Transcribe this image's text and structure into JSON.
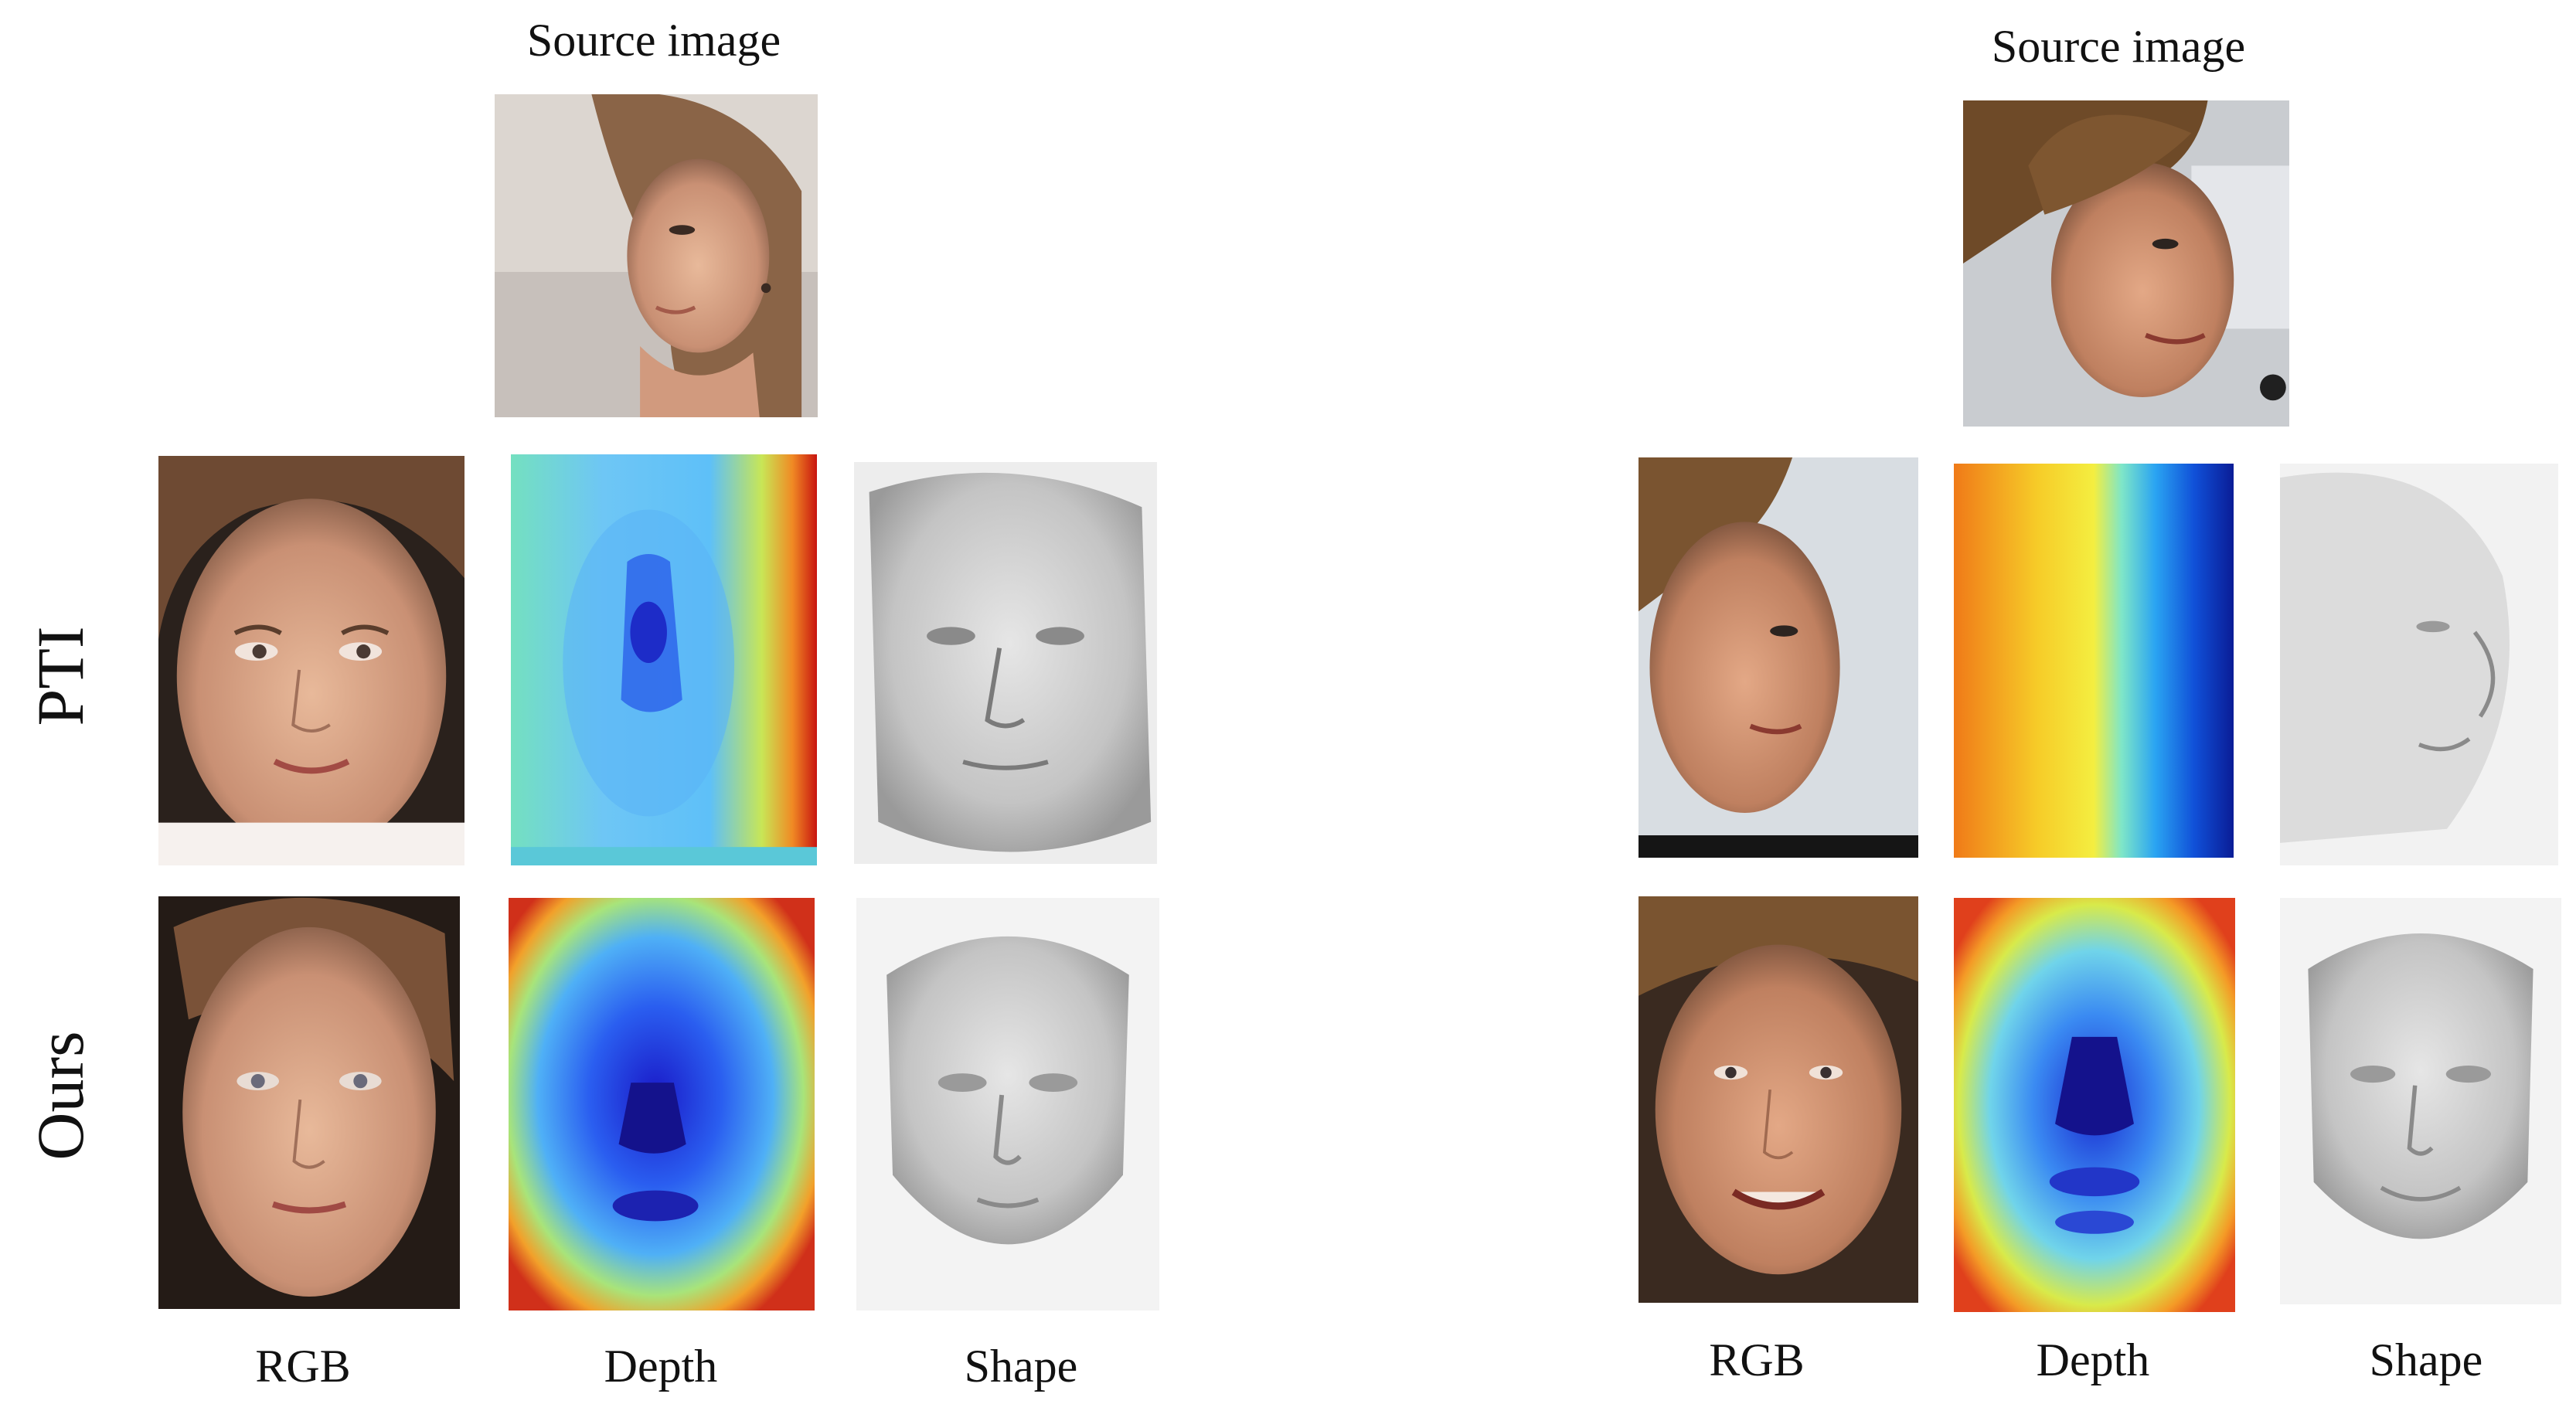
{
  "figure": {
    "source_label": "Source image",
    "row_labels": {
      "pti": "PTI",
      "ours": "Ours"
    },
    "column_labels": [
      "RGB",
      "Depth",
      "Shape"
    ]
  },
  "panels": [
    {
      "name": "left",
      "source_label": "Source image",
      "columns": [
        "RGB",
        "Depth",
        "Shape"
      ],
      "rows": [
        "PTI",
        "Ours"
      ]
    },
    {
      "name": "right",
      "source_label": "Source image",
      "columns": [
        "RGB",
        "Depth",
        "Shape"
      ],
      "rows": []
    }
  ]
}
